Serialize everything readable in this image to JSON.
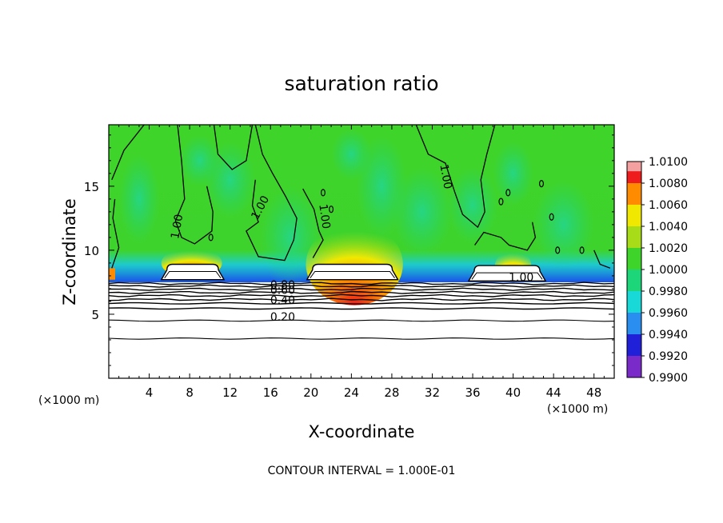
{
  "chart_data": {
    "type": "heatmap",
    "title": "saturation ratio",
    "xlabel": "X-coordinate",
    "ylabel": "Z-coordinate",
    "x_unit": "(×1000 m)",
    "z_unit": "(×1000 m)",
    "x_range": [
      0,
      50
    ],
    "z_range": [
      0,
      19.8
    ],
    "x_ticks": [
      "4",
      "8",
      "12",
      "16",
      "20",
      "24",
      "28",
      "32",
      "36",
      "40",
      "44",
      "48"
    ],
    "z_ticks": [
      "5",
      "10",
      "15"
    ],
    "footer": "CONTOUR INTERVAL = 1.000E-01",
    "colorbar": {
      "levels": [
        "0.9900",
        "0.9920",
        "0.9940",
        "0.9960",
        "0.9980",
        "1.0000",
        "1.0020",
        "1.0040",
        "1.0060",
        "1.0080",
        "1.0100"
      ],
      "colors": [
        "#7a2ac8",
        "#2020d8",
        "#2a8ef0",
        "#18d8d8",
        "#1ed67a",
        "#3fd42a",
        "#a8dc18",
        "#f0e800",
        "#ff8c00",
        "#ee1c1c",
        "#f4a0a0"
      ]
    },
    "contour_labels": [
      {
        "text": "1.00",
        "x": 7.1,
        "z": 11.8,
        "angle": -80
      },
      {
        "text": "1.00",
        "x": 15.3,
        "z": 13.2,
        "angle": -62
      },
      {
        "text": "1.00",
        "x": 21.0,
        "z": 12.6,
        "angle": 82
      },
      {
        "text": "1.00",
        "x": 33.0,
        "z": 15.7,
        "angle": 80
      },
      {
        "text": "1.00",
        "x": 40.8,
        "z": 7.6,
        "angle": 0
      },
      {
        "text": "0.80",
        "x": 17.2,
        "z": 7.0,
        "angle": 0
      },
      {
        "text": "0.60",
        "x": 17.2,
        "z": 6.6,
        "angle": 0
      },
      {
        "text": "0.40",
        "x": 17.2,
        "z": 5.8,
        "angle": 0
      },
      {
        "text": "0.20",
        "x": 17.2,
        "z": 4.5,
        "angle": 0
      }
    ],
    "clouds": [
      {
        "x0": 5.2,
        "x1": 11.4,
        "zb": 7.7,
        "zt": 8.9
      },
      {
        "x0": 19.6,
        "x1": 28.6,
        "zb": 7.7,
        "zt": 8.9
      },
      {
        "x0": 35.6,
        "x1": 43.2,
        "zb": 7.6,
        "zt": 8.8
      }
    ]
  }
}
